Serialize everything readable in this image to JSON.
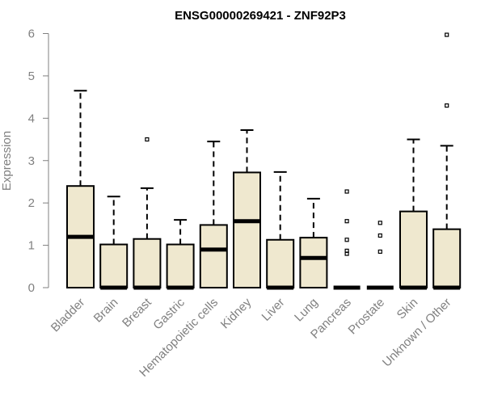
{
  "chart_data": {
    "type": "boxplot",
    "title": "ENSG00000269421 - ZNF92P3",
    "xlabel": "",
    "ylabel": "Expression",
    "ylim": [
      0,
      6
    ],
    "yticks": [
      0,
      1,
      2,
      3,
      4,
      5,
      6
    ],
    "ytick_labels": [
      "0",
      "1",
      "2",
      "3",
      "4",
      "5",
      "6"
    ],
    "grid": false,
    "legend": "none",
    "colors": {
      "box_fill": "#efe8cf",
      "box_stroke": "#000000",
      "axis": "#808080",
      "median": "#000000"
    },
    "categories": [
      "Bladder",
      "Brain",
      "Breast",
      "Gastric",
      "Hematopoietic cells",
      "Kidney",
      "Liver",
      "Lung",
      "Pancreas",
      "Prostate",
      "Skin",
      "Unknown / Other"
    ],
    "boxes": [
      {
        "min": 0,
        "q1": 0,
        "median": 1.2,
        "q3": 2.4,
        "max": 4.65,
        "outliers": []
      },
      {
        "min": 0,
        "q1": 0,
        "median": 0,
        "q3": 1.02,
        "max": 2.15,
        "outliers": []
      },
      {
        "min": 0,
        "q1": 0,
        "median": 0,
        "q3": 1.15,
        "max": 2.35,
        "outliers": [
          3.5
        ]
      },
      {
        "min": 0,
        "q1": 0,
        "median": 0,
        "q3": 1.02,
        "max": 1.6,
        "outliers": []
      },
      {
        "min": 0,
        "q1": 0,
        "median": 0.9,
        "q3": 1.48,
        "max": 3.45,
        "outliers": []
      },
      {
        "min": 0,
        "q1": 0,
        "median": 1.57,
        "q3": 2.72,
        "max": 3.72,
        "outliers": []
      },
      {
        "min": 0,
        "q1": 0,
        "median": 0,
        "q3": 1.13,
        "max": 2.73,
        "outliers": []
      },
      {
        "min": 0,
        "q1": 0,
        "median": 0.7,
        "q3": 1.18,
        "max": 2.1,
        "outliers": []
      },
      {
        "min": 0,
        "q1": 0,
        "median": 0,
        "q3": 0,
        "max": 0,
        "outliers": [
          0.8,
          0.87,
          1.13,
          1.57,
          2.27
        ]
      },
      {
        "min": 0,
        "q1": 0,
        "median": 0,
        "q3": 0,
        "max": 0,
        "outliers": [
          0.85,
          1.23,
          1.53
        ]
      },
      {
        "min": 0,
        "q1": 0,
        "median": 0,
        "q3": 1.8,
        "max": 3.5,
        "outliers": []
      },
      {
        "min": 0,
        "q1": 0,
        "median": 0,
        "q3": 1.38,
        "max": 3.35,
        "outliers": [
          4.3,
          5.97
        ]
      }
    ]
  }
}
